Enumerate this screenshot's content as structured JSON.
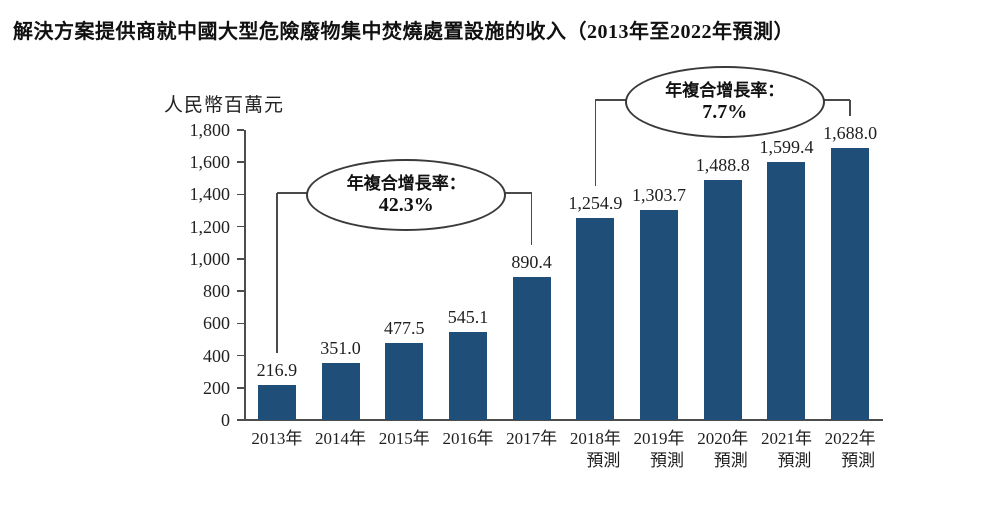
{
  "title": "解決方案提供商就中國大型危險廢物集中焚燒處置設施的收入（2013年至2022年預測）",
  "chart_data": {
    "type": "bar",
    "title": "解決方案提供商就中國大型危險廢物集中焚燒處置設施的收入（2013年至2022年預測）",
    "xlabel": "",
    "ylabel": "人民幣百萬元",
    "ylim": [
      0,
      1800
    ],
    "ytick_step": 200,
    "ytick_labels": [
      "0",
      "200",
      "400",
      "600",
      "800",
      "1,000",
      "1,200",
      "1,400",
      "1,600",
      "1,800"
    ],
    "grid": false,
    "legend_position": "none",
    "bar_color": "#1F4E79",
    "axis_color": "#4d4d4d",
    "categories": [
      {
        "line1": "2013年",
        "line2": ""
      },
      {
        "line1": "2014年",
        "line2": ""
      },
      {
        "line1": "2015年",
        "line2": ""
      },
      {
        "line1": "2016年",
        "line2": ""
      },
      {
        "line1": "2017年",
        "line2": ""
      },
      {
        "line1": "2018年",
        "line2": "預測"
      },
      {
        "line1": "2019年",
        "line2": "預測"
      },
      {
        "line1": "2020年",
        "line2": "預測"
      },
      {
        "line1": "2021年",
        "line2": "預測"
      },
      {
        "line1": "2022年",
        "line2": "預測"
      }
    ],
    "values": [
      216.9,
      351.0,
      477.5,
      545.1,
      890.4,
      1254.9,
      1303.7,
      1488.8,
      1599.4,
      1688.0
    ],
    "value_labels": [
      "216.9",
      "351.0",
      "477.5",
      "545.1",
      "890.4",
      "1,254.9",
      "1,303.7",
      "1,488.8",
      "1,599.4",
      "1,688.0"
    ],
    "annotations": [
      {
        "line1": "年複合增長率：",
        "line2": "42.3%",
        "from_index": 0,
        "to_index": 4
      },
      {
        "line1": "年複合增長率：",
        "line2": "7.7%",
        "from_index": 5,
        "to_index": 9
      }
    ]
  }
}
